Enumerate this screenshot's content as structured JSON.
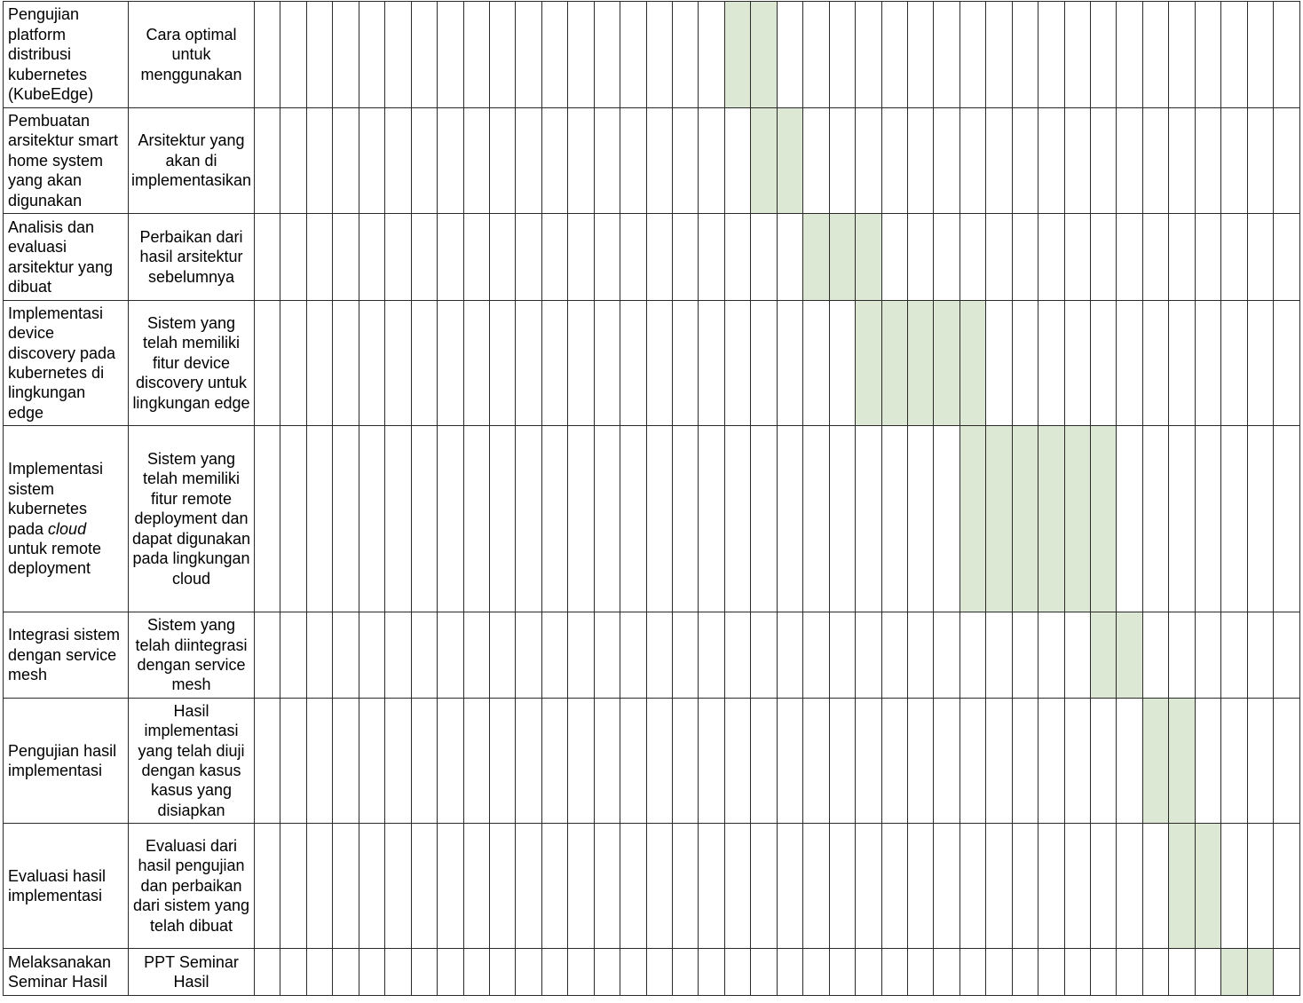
{
  "weeks": 40,
  "colors": {
    "active": "#dde8d4",
    "border": "#2a2a2a"
  },
  "rows": [
    {
      "task": "Pengujian platform distribusi kubernetes (KubeEdge)",
      "output": "Cara optimal untuk menggunakan",
      "active_weeks": [
        18,
        19
      ]
    },
    {
      "task": "Pembuatan arsitektur smart home system yang akan digunakan",
      "output": "Arsitektur yang akan di implementasikan",
      "active_weeks": [
        19,
        20
      ]
    },
    {
      "task": "Analisis dan evaluasi arsitektur yang dibuat",
      "output": "Perbaikan dari hasil arsitektur sebelumnya",
      "active_weeks": [
        21,
        22,
        23
      ]
    },
    {
      "task": "Implementasi device discovery pada kubernetes di lingkungan edge",
      "output": "Sistem yang telah memiliki fitur device discovery untuk lingkungan edge",
      "active_weeks": [
        23,
        24,
        25,
        26,
        27
      ]
    },
    {
      "task_parts": [
        "Implementasi sistem kubernetes pada ",
        "cloud",
        " untuk remote deployment"
      ],
      "output": "Sistem yang telah memiliki fitur remote deployment dan dapat digunakan pada lingkungan cloud",
      "active_weeks": [
        27,
        28,
        29,
        30,
        31,
        32
      ]
    },
    {
      "task": "Integrasi sistem dengan service mesh",
      "output": "Sistem yang telah diintegrasi dengan service mesh",
      "active_weeks": [
        32,
        33
      ]
    },
    {
      "task": "Pengujian hasil implementasi",
      "output": "Hasil implementasi yang telah diuji dengan kasus kasus yang disiapkan",
      "active_weeks": [
        34,
        35
      ]
    },
    {
      "task": "Evaluasi hasil implementasi",
      "output": "Evaluasi dari hasil pengujian dan perbaikan dari sistem yang telah dibuat",
      "active_weeks": [
        35,
        36
      ]
    },
    {
      "task": "Melaksanakan Seminar Hasil",
      "output": "PPT Seminar Hasil",
      "active_weeks": [
        37,
        38
      ]
    }
  ]
}
